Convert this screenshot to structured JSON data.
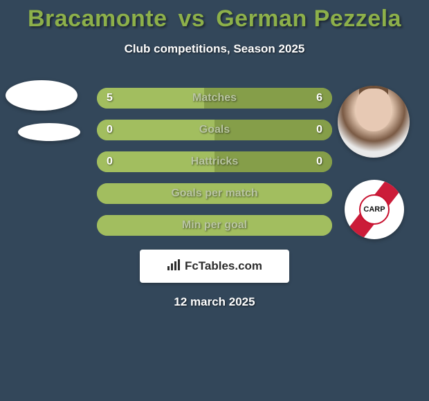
{
  "title": {
    "player1": "Bracamonte",
    "vs": "vs",
    "player2": "German Pezzela",
    "color": "#8db04a"
  },
  "subtitle": "Club competitions, Season 2025",
  "date": "12 march 2025",
  "brand": {
    "icon": "📊",
    "text": "FcTables.com"
  },
  "colors": {
    "background": "#33475a",
    "text_light": "#ffffff",
    "bar_label": "#b9c5a2",
    "bar_value": "#ffffff",
    "player1_fill": "#a2be5f",
    "player2_fill": "#859e49",
    "bar_empty": "#a2be5f"
  },
  "stats": {
    "rows": [
      {
        "label": "Matches",
        "left": "5",
        "right": "6",
        "left_pct": 45.5,
        "right_pct": 54.5,
        "show_values": true
      },
      {
        "label": "Goals",
        "left": "0",
        "right": "0",
        "left_pct": 50,
        "right_pct": 50,
        "show_values": true
      },
      {
        "label": "Hattricks",
        "left": "0",
        "right": "0",
        "left_pct": 50,
        "right_pct": 50,
        "show_values": true
      },
      {
        "label": "Goals per match",
        "left": "",
        "right": "",
        "left_pct": 100,
        "right_pct": 0,
        "show_values": false
      },
      {
        "label": "Min per goal",
        "left": "",
        "right": "",
        "left_pct": 100,
        "right_pct": 0,
        "show_values": false
      }
    ]
  },
  "avatars": {
    "right2_badge": "CARP"
  }
}
